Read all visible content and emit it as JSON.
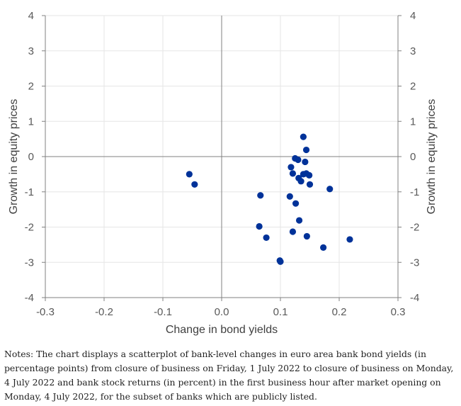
{
  "chart_data": {
    "type": "scatter",
    "xlabel": "Change in bond yields",
    "ylabel": "Growth in equity prices",
    "ylabel_right": "Growth in equity prices",
    "xlim": [
      -0.3,
      0.3
    ],
    "ylim": [
      -4,
      4
    ],
    "x_ticks": [
      -0.3,
      -0.2,
      -0.1,
      0.0,
      0.1,
      0.2,
      0.3
    ],
    "x_tick_labels": [
      "-0.3",
      "-0.2",
      "-0.1",
      "0.0",
      "0.1",
      "0.2",
      "0.3"
    ],
    "y_ticks": [
      4,
      3,
      2,
      1,
      0,
      -1,
      -2,
      -3,
      -4
    ],
    "y_tick_labels": [
      "4",
      "3",
      "2",
      "1",
      "0",
      "-1",
      "-2",
      "-3",
      "-4"
    ],
    "grid": true,
    "marker_color": "#003299",
    "points": [
      {
        "x": 0.139,
        "y": 0.56
      },
      {
        "x": 0.144,
        "y": 0.19
      },
      {
        "x": 0.125,
        "y": -0.05
      },
      {
        "x": 0.13,
        "y": -0.09
      },
      {
        "x": 0.142,
        "y": -0.15
      },
      {
        "x": 0.118,
        "y": -0.3
      },
      {
        "x": 0.121,
        "y": -0.48
      },
      {
        "x": 0.139,
        "y": -0.5
      },
      {
        "x": 0.144,
        "y": -0.48
      },
      {
        "x": 0.149,
        "y": -0.53
      },
      {
        "x": 0.131,
        "y": -0.61
      },
      {
        "x": 0.135,
        "y": -0.7
      },
      {
        "x": 0.15,
        "y": -0.79
      },
      {
        "x": 0.184,
        "y": -0.92
      },
      {
        "x": -0.055,
        "y": -0.5
      },
      {
        "x": -0.046,
        "y": -0.79
      },
      {
        "x": 0.066,
        "y": -1.1
      },
      {
        "x": 0.116,
        "y": -1.13
      },
      {
        "x": 0.126,
        "y": -1.33
      },
      {
        "x": 0.132,
        "y": -1.81
      },
      {
        "x": 0.064,
        "y": -1.98
      },
      {
        "x": 0.121,
        "y": -2.13
      },
      {
        "x": 0.076,
        "y": -2.3
      },
      {
        "x": 0.145,
        "y": -2.26
      },
      {
        "x": 0.218,
        "y": -2.35
      },
      {
        "x": 0.173,
        "y": -2.58
      },
      {
        "x": 0.099,
        "y": -2.95
      },
      {
        "x": 0.1,
        "y": -2.98
      }
    ]
  },
  "notes": "Notes: The chart displays a scatterplot of bank-level changes in euro area bank bond yields (in percentage points) from closure of business on Friday, 1 July 2022 to closure of business on Monday, 4 July 2022 and bank stock returns (in percent) in the first business hour after market opening on Monday, 4 July 2022, for the subset of banks which are publicly listed."
}
